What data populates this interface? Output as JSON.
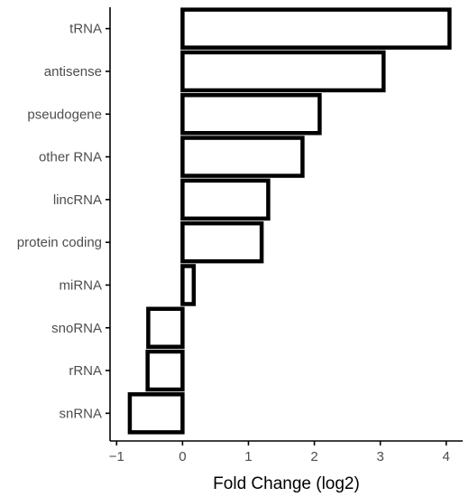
{
  "chart_data": {
    "type": "bar",
    "orientation": "horizontal",
    "categories": [
      "tRNA",
      "antisense",
      "pseudogene",
      "other RNA",
      "lincRNA",
      "protein coding",
      "miRNA",
      "snoRNA",
      "rRNA",
      "snRNA"
    ],
    "values": [
      4.05,
      3.05,
      2.08,
      1.82,
      1.3,
      1.2,
      0.17,
      -0.52,
      -0.53,
      -0.8
    ],
    "xlabel": "Fold Change (log2)",
    "ylabel": "",
    "x_ticks": [
      "−1",
      "0",
      "1",
      "2",
      "3",
      "4"
    ],
    "x_tick_values": [
      -1,
      0,
      1,
      2,
      3,
      4
    ],
    "xlim": [
      -1.1,
      4.25
    ],
    "grid": false,
    "colors": {
      "bar_fill": "#ffffff",
      "bar_stroke": "#000000",
      "axis": "#000000",
      "tick_text": "#4d4d4d"
    }
  }
}
